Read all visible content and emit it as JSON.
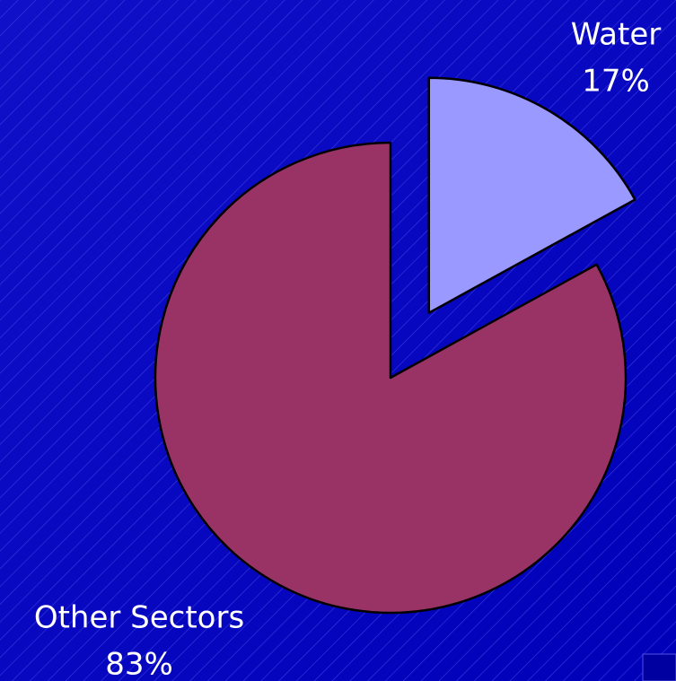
{
  "chart_data": {
    "type": "pie",
    "categories": [
      "Water",
      "Other Sectors"
    ],
    "values": [
      17,
      83
    ],
    "value_labels": [
      "17%",
      "83%"
    ],
    "colors": [
      "#9999ff",
      "#993366"
    ],
    "explode": [
      true,
      false
    ]
  }
}
